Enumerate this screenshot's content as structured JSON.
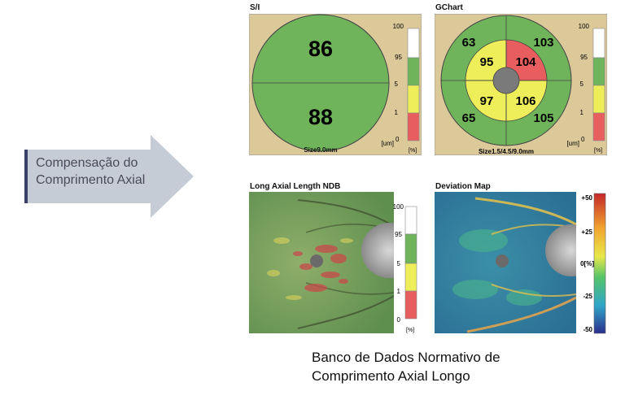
{
  "arrow": {
    "line1": "Compensação do",
    "line2": "Comprimento Axial",
    "color": "#c5ccd6",
    "accent": "#3a3f6b"
  },
  "si_panel": {
    "title": "S/I",
    "superior": "86",
    "inferior": "88",
    "size": "Size9.0mm",
    "unit": "[um]",
    "unit_sup": "0",
    "pct": "[%]",
    "scale": [
      "100",
      "95",
      "5",
      "1"
    ]
  },
  "gchart_panel": {
    "title": "GChart",
    "outer": {
      "tl": "63",
      "tr": "103",
      "bl": "65",
      "br": "105"
    },
    "inner": {
      "tl": "95",
      "tr": "104",
      "bl": "97",
      "br": "106"
    },
    "size": "Size1.5/4.5/9.0mm",
    "unit": "[um]",
    "unit_sup": "0",
    "pct": "[%]",
    "scale": [
      "100",
      "95",
      "5",
      "1"
    ]
  },
  "ndb_panel": {
    "title": "Long Axial Length NDB",
    "scale": [
      "100",
      "95",
      "5",
      "1",
      "0"
    ],
    "pct": "[%]"
  },
  "deviation_panel": {
    "title": "Deviation Map",
    "scale": [
      "+50",
      "+25",
      "0[%]",
      "-25",
      "-50"
    ]
  },
  "caption": {
    "line1": "Banco de Dados Normativo de",
    "line2": "Comprimento Axial Longo"
  },
  "colors": {
    "green": "#6fb35a",
    "yellow": "#eeee5a",
    "red": "#e85d5d",
    "tan": "#dcc99a"
  }
}
